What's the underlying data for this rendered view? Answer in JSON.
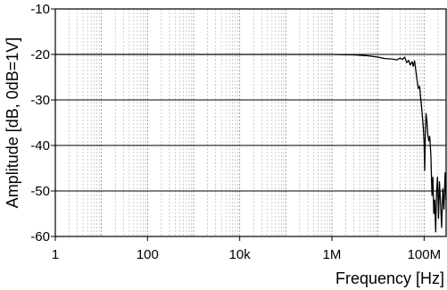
{
  "chart_data": {
    "type": "line",
    "title": "",
    "xlabel": "Frequency [Hz]",
    "ylabel": "Amplitude [dB, 0dB=1V]",
    "x_scale": "log",
    "xlim": [
      1,
      300000000
    ],
    "ylim": [
      -60,
      -10
    ],
    "x_ticks": [
      {
        "value": 1,
        "label": "1"
      },
      {
        "value": 100,
        "label": "100"
      },
      {
        "value": 10000,
        "label": "10k"
      },
      {
        "value": 1000000,
        "label": "1M"
      },
      {
        "value": 100000000,
        "label": "100M"
      }
    ],
    "y_ticks": [
      {
        "value": -10,
        "label": "-10"
      },
      {
        "value": -20,
        "label": "-20"
      },
      {
        "value": -30,
        "label": "-30"
      },
      {
        "value": -40,
        "label": "-40"
      },
      {
        "value": -50,
        "label": "-50"
      },
      {
        "value": -60,
        "label": "-60"
      }
    ],
    "grid": true,
    "legend": "none",
    "series": [
      {
        "color": "#000000",
        "points": [
          [
            1,
            -20.0
          ],
          [
            10,
            -20.0
          ],
          [
            100,
            -20.0
          ],
          [
            1000,
            -20.0
          ],
          [
            10000,
            -20.0
          ],
          [
            100000,
            -20.0
          ],
          [
            500000,
            -20.0
          ],
          [
            1000000,
            -20.0
          ],
          [
            3000000,
            -20.1
          ],
          [
            6000000,
            -20.3
          ],
          [
            10000000,
            -20.6
          ],
          [
            14000000,
            -20.9
          ],
          [
            20000000,
            -21.0
          ],
          [
            26000000,
            -21.2
          ],
          [
            30000000,
            -20.8
          ],
          [
            34000000,
            -21.1
          ],
          [
            38000000,
            -20.6
          ],
          [
            42000000,
            -21.8
          ],
          [
            46000000,
            -21.3
          ],
          [
            50000000,
            -22.3
          ],
          [
            55000000,
            -21.6
          ],
          [
            58000000,
            -22.6
          ],
          [
            62000000,
            -21.4
          ],
          [
            66000000,
            -23.5
          ],
          [
            70000000,
            -25.5
          ],
          [
            75000000,
            -27.5
          ],
          [
            80000000,
            -27.0
          ],
          [
            84000000,
            -29.5
          ],
          [
            88000000,
            -31.5
          ],
          [
            92000000,
            -33.8
          ],
          [
            96000000,
            -36.0
          ],
          [
            100000000,
            -39.5
          ],
          [
            103000000,
            -45.5
          ],
          [
            106000000,
            -38.0
          ],
          [
            110000000,
            -33.0
          ],
          [
            115000000,
            -34.5
          ],
          [
            120000000,
            -37.5
          ],
          [
            126000000,
            -39.0
          ],
          [
            132000000,
            -38.0
          ],
          [
            140000000,
            -42.0
          ],
          [
            148000000,
            -51.0
          ],
          [
            155000000,
            -47.0
          ],
          [
            162000000,
            -55.0
          ],
          [
            170000000,
            -52.0
          ],
          [
            178000000,
            -59.0
          ],
          [
            186000000,
            -50.5
          ],
          [
            195000000,
            -47.0
          ],
          [
            205000000,
            -56.0
          ],
          [
            215000000,
            -48.0
          ],
          [
            228000000,
            -53.0
          ],
          [
            240000000,
            -58.0
          ],
          [
            255000000,
            -49.5
          ],
          [
            270000000,
            -54.0
          ],
          [
            285000000,
            -46.0
          ],
          [
            300000000,
            -52.0
          ]
        ]
      }
    ]
  }
}
